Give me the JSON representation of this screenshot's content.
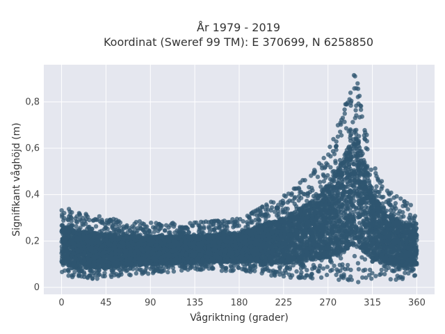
{
  "chart_data": {
    "type": "scatter",
    "title_line1": "År 1979 - 2019",
    "title_line2": "Koordinat (Sweref 99 TM): E 370699, N 6258850",
    "xlabel": "Vågriktning (grader)",
    "ylabel": "Signifikant våghöjd (m)",
    "xlim": [
      -18,
      378
    ],
    "ylim": [
      -0.03,
      0.96
    ],
    "x_ticks": [
      0,
      45,
      90,
      135,
      180,
      225,
      270,
      315,
      360
    ],
    "y_ticks": [
      0,
      0.2,
      0.4,
      0.6,
      0.8
    ],
    "y_tick_labels": [
      "0",
      "0,2",
      "0,4",
      "0,6",
      "0,8"
    ],
    "grid": true,
    "marker_color": "#2f5670",
    "plot_bg": "#e5e7ef",
    "envelope": [
      {
        "x": 0,
        "min": 0.05,
        "max": 0.35
      },
      {
        "x": 15,
        "min": 0.03,
        "max": 0.33
      },
      {
        "x": 45,
        "min": 0.04,
        "max": 0.3
      },
      {
        "x": 90,
        "min": 0.06,
        "max": 0.28
      },
      {
        "x": 135,
        "min": 0.07,
        "max": 0.28
      },
      {
        "x": 180,
        "min": 0.07,
        "max": 0.3
      },
      {
        "x": 200,
        "min": 0.06,
        "max": 0.34
      },
      {
        "x": 225,
        "min": 0.04,
        "max": 0.4
      },
      {
        "x": 250,
        "min": 0.04,
        "max": 0.48
      },
      {
        "x": 270,
        "min": 0.03,
        "max": 0.6
      },
      {
        "x": 285,
        "min": 0.03,
        "max": 0.75
      },
      {
        "x": 297,
        "min": 0.02,
        "max": 0.93
      },
      {
        "x": 305,
        "min": 0.02,
        "max": 0.8
      },
      {
        "x": 315,
        "min": 0.03,
        "max": 0.55
      },
      {
        "x": 330,
        "min": 0.03,
        "max": 0.42
      },
      {
        "x": 345,
        "min": 0.03,
        "max": 0.38
      },
      {
        "x": 360,
        "min": 0.04,
        "max": 0.35
      }
    ]
  }
}
